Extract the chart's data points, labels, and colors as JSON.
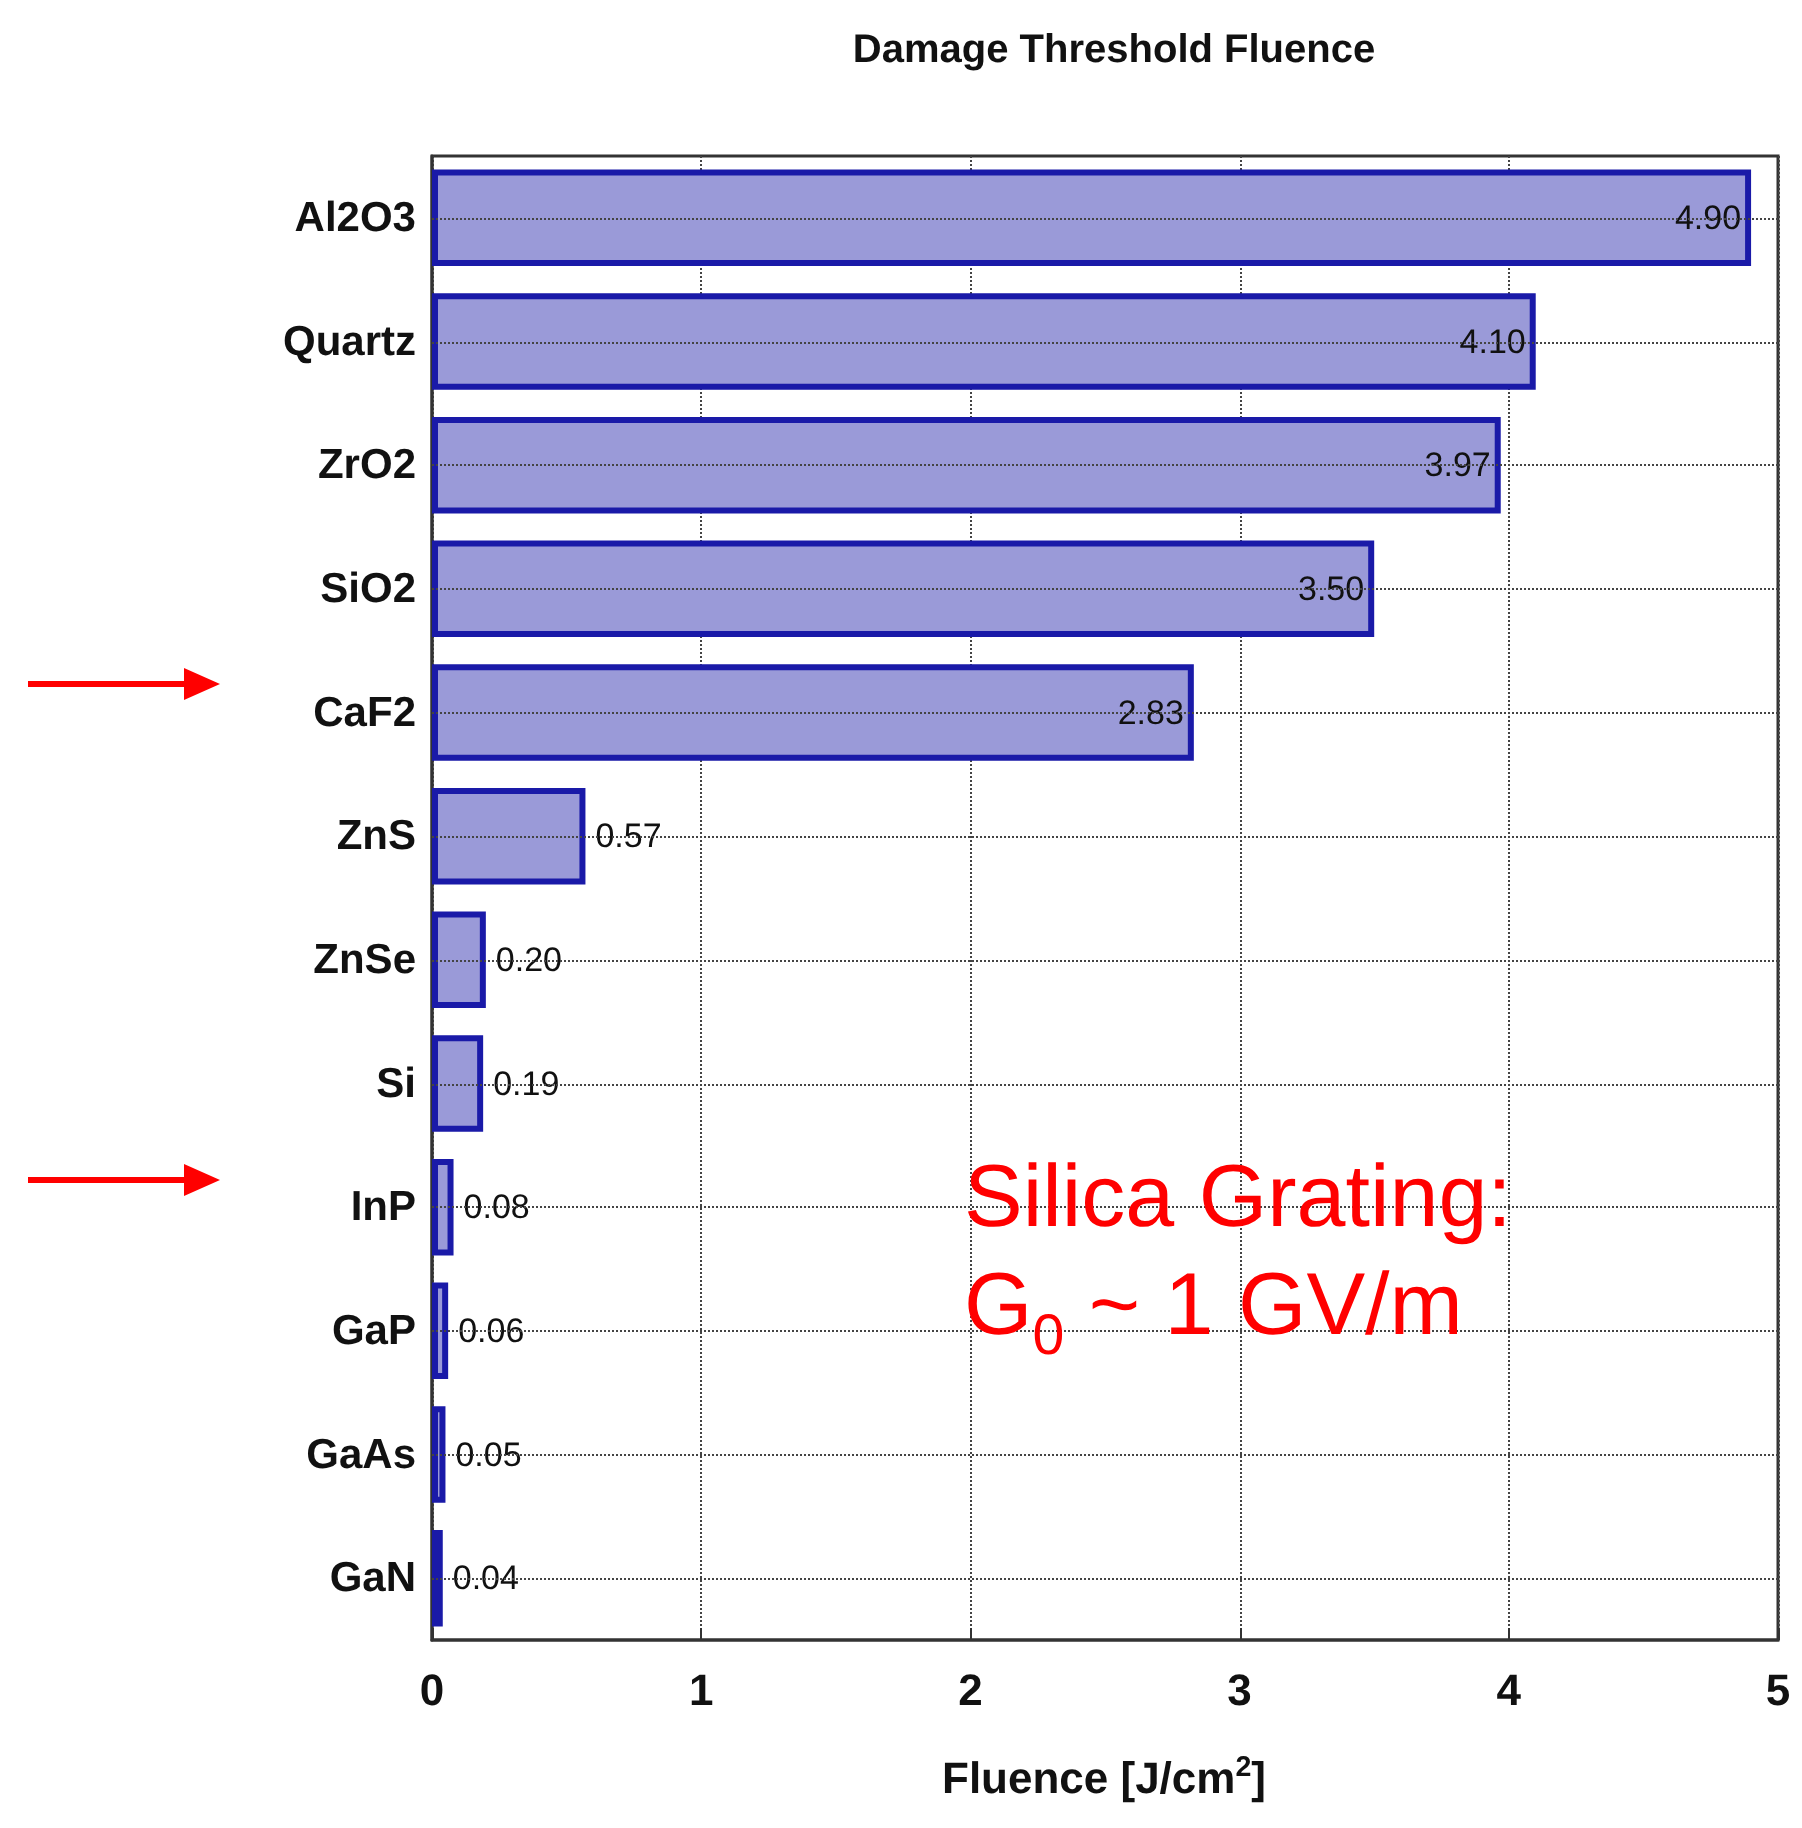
{
  "chart_data": {
    "type": "bar",
    "orientation": "horizontal",
    "title": "Damage Threshold Fluence",
    "xlabel": "Fluence [J/cm$^{2}$]",
    "categories": [
      "Al2O3",
      "Quartz",
      "ZrO2",
      "SiO2",
      "CaF2",
      "ZnS",
      "ZnSe",
      "Si",
      "InP",
      "GaP",
      "GaAs",
      "GaN"
    ],
    "values": [
      4.9,
      4.1,
      3.97,
      3.5,
      2.83,
      0.57,
      0.2,
      0.19,
      0.08,
      0.06,
      0.05,
      0.04
    ],
    "value_labels": [
      "4.90",
      "4.10",
      "3.97",
      "3.50",
      "2.83",
      "0.57",
      "0.20",
      "0.19",
      "0.08",
      "0.06",
      "0.05",
      "0.04"
    ],
    "color": "#9a9ad8",
    "xlim": [
      0,
      5
    ],
    "xticks": [
      0,
      1,
      2,
      3,
      4,
      5
    ],
    "grid": true,
    "annotations": [
      "Silica Grating:\nG$_{0}$ ~ 1 GV/m"
    ]
  }
}
